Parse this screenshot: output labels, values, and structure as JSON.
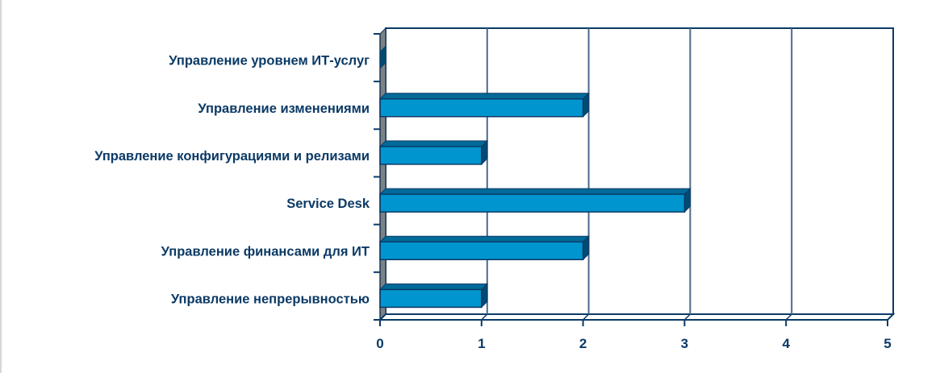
{
  "chart_data": {
    "type": "bar",
    "orientation": "horizontal",
    "style": "3d",
    "title": "",
    "xlabel": "",
    "ylabel": "",
    "categories": [
      "Управление уровнем ИТ-услуг",
      "Управление изменениями",
      "Управление конфигурациями и релизами",
      "Service Desk",
      "Управление финансами для ИТ",
      "Управление непрерывностью"
    ],
    "values": [
      0,
      2,
      1,
      3,
      2,
      1
    ],
    "xlim": [
      0,
      5
    ],
    "x_ticks": [
      "0",
      "1",
      "2",
      "3",
      "4",
      "5"
    ],
    "grid": true,
    "legend": null
  },
  "colors": {
    "bar_front": "#0095cf",
    "bar_top": "#006a99",
    "bar_side": "#004b73",
    "bar_outline": "#0b3a66",
    "axis": "#0b3a66",
    "gridline": "#4a6a8c",
    "wall": "#808080",
    "text": "#0b3a66"
  }
}
